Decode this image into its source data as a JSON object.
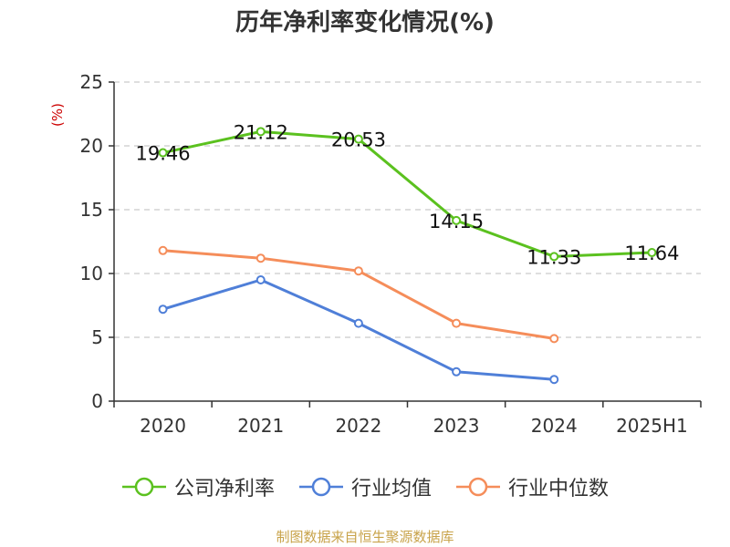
{
  "chart_data": {
    "type": "line",
    "title": "历年净利率变化情况(%)",
    "ylabel": "(%)",
    "xlabel": "",
    "categories": [
      "2020",
      "2021",
      "2022",
      "2023",
      "2024",
      "2025H1"
    ],
    "ylim": [
      0,
      25
    ],
    "yticks": [
      0,
      5,
      10,
      15,
      20,
      25
    ],
    "grid": true,
    "legend": "bottom",
    "series": [
      {
        "name": "公司净利率",
        "color": "#5bc11f",
        "values": [
          19.46,
          21.12,
          20.53,
          14.15,
          11.33,
          11.64
        ],
        "labels": [
          "19.46",
          "21.12",
          "20.53",
          "14.15",
          "11.33",
          "11.64"
        ]
      },
      {
        "name": "行业均值",
        "color": "#4f7fd8",
        "values": [
          7.2,
          9.5,
          6.1,
          2.3,
          1.7,
          null
        ],
        "labels": []
      },
      {
        "name": "行业中位数",
        "color": "#f58d5a",
        "values": [
          11.8,
          11.2,
          10.2,
          6.1,
          4.9,
          null
        ],
        "labels": []
      }
    ]
  },
  "source": "制图数据来自恒生聚源数据库"
}
